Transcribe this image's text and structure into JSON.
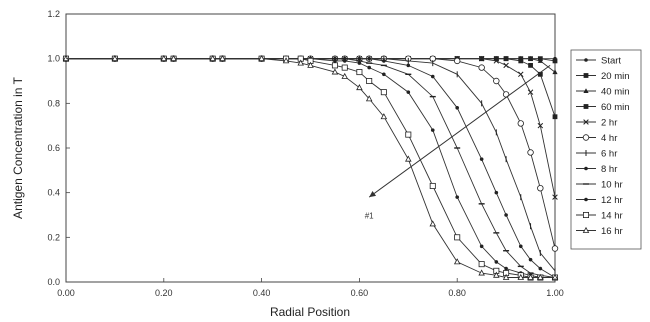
{
  "chart_data": {
    "type": "line",
    "title": "",
    "xlabel": "Radial Position",
    "ylabel": "Antigen Concentration in T",
    "xlim": [
      0,
      1
    ],
    "ylim": [
      0,
      1.2
    ],
    "x_ticks": [
      "0.00",
      "0.20",
      "0.40",
      "0.60",
      "0.80",
      "1.00"
    ],
    "y_ticks": [
      "0.0",
      "0.2",
      "0.4",
      "0.6",
      "0.8",
      "1.0",
      "1.2"
    ],
    "grid": false,
    "legend_position": "right",
    "x": [
      0,
      0.1,
      0.2,
      0.22,
      0.3,
      0.32,
      0.4,
      0.45,
      0.48,
      0.5,
      0.55,
      0.57,
      0.6,
      0.62,
      0.65,
      0.7,
      0.75,
      0.8,
      0.85,
      0.88,
      0.9,
      0.93,
      0.95,
      0.97,
      1.0
    ],
    "series": [
      {
        "name": "Start",
        "marker": "dot",
        "values": [
          1,
          1,
          1,
          1,
          1,
          1,
          1,
          1,
          1,
          1,
          1,
          1,
          1,
          1,
          1,
          1,
          1,
          1,
          1,
          1,
          1,
          1,
          1,
          1,
          1
        ]
      },
      {
        "name": "20 min",
        "marker": "square-fill",
        "values": [
          1,
          1,
          1,
          1,
          1,
          1,
          1,
          1,
          1,
          1,
          1,
          1,
          1,
          1,
          1,
          1,
          1,
          1,
          1,
          1,
          1,
          1,
          1,
          1,
          0.99
        ]
      },
      {
        "name": "40 min",
        "marker": "tri-fill",
        "values": [
          1,
          1,
          1,
          1,
          1,
          1,
          1,
          1,
          1,
          1,
          1,
          1,
          1,
          1,
          1,
          1,
          1,
          1,
          1,
          1,
          1,
          1,
          1,
          0.99,
          0.94
        ]
      },
      {
        "name": "60 min",
        "marker": "square-fill",
        "values": [
          1,
          1,
          1,
          1,
          1,
          1,
          1,
          1,
          1,
          1,
          1,
          1,
          1,
          1,
          1,
          1,
          1,
          1,
          1,
          1,
          1,
          0.99,
          0.97,
          0.93,
          0.74
        ]
      },
      {
        "name": "2 hr",
        "marker": "x",
        "values": [
          1,
          1,
          1,
          1,
          1,
          1,
          1,
          1,
          1,
          1,
          1,
          1,
          1,
          1,
          1,
          1,
          1,
          1,
          1,
          0.99,
          0.97,
          0.93,
          0.85,
          0.7,
          0.38
        ]
      },
      {
        "name": "4 hr",
        "marker": "circle-open",
        "values": [
          1,
          1,
          1,
          1,
          1,
          1,
          1,
          1,
          1,
          1,
          1,
          1,
          1,
          1,
          1,
          1,
          1,
          0.99,
          0.96,
          0.9,
          0.84,
          0.71,
          0.58,
          0.42,
          0.15
        ]
      },
      {
        "name": "6 hr",
        "marker": "bar",
        "values": [
          1,
          1,
          1,
          1,
          1,
          1,
          1,
          1,
          1,
          1,
          1,
          1,
          1,
          1,
          1,
          0.99,
          0.98,
          0.93,
          0.8,
          0.67,
          0.55,
          0.38,
          0.25,
          0.13,
          0.05
        ]
      },
      {
        "name": "8 hr",
        "marker": "dot",
        "values": [
          1,
          1,
          1,
          1,
          1,
          1,
          1,
          1,
          1,
          1,
          1,
          1,
          1,
          1,
          0.99,
          0.97,
          0.92,
          0.78,
          0.55,
          0.4,
          0.3,
          0.16,
          0.1,
          0.06,
          0.02
        ]
      },
      {
        "name": "10 hr",
        "marker": "dash",
        "values": [
          1,
          1,
          1,
          1,
          1,
          1,
          1,
          1,
          1,
          1,
          1,
          1,
          0.99,
          0.98,
          0.97,
          0.93,
          0.83,
          0.6,
          0.35,
          0.22,
          0.14,
          0.07,
          0.04,
          0.03,
          0.02
        ]
      },
      {
        "name": "12 hr",
        "marker": "dot",
        "values": [
          1,
          1,
          1,
          1,
          1,
          1,
          1,
          1,
          1,
          1,
          0.99,
          0.99,
          0.98,
          0.96,
          0.93,
          0.85,
          0.68,
          0.38,
          0.16,
          0.09,
          0.06,
          0.04,
          0.03,
          0.02,
          0.02
        ]
      },
      {
        "name": "14 hr",
        "marker": "square-open",
        "values": [
          1,
          1,
          1,
          1,
          1,
          1,
          1,
          1,
          1,
          0.99,
          0.97,
          0.96,
          0.94,
          0.9,
          0.85,
          0.66,
          0.43,
          0.2,
          0.08,
          0.05,
          0.04,
          0.03,
          0.02,
          0.02,
          0.02
        ]
      },
      {
        "name": "16 hr",
        "marker": "tri-open",
        "values": [
          1,
          1,
          1,
          1,
          1,
          1,
          1,
          0.99,
          0.98,
          0.97,
          0.94,
          0.92,
          0.87,
          0.82,
          0.74,
          0.55,
          0.26,
          0.09,
          0.04,
          0.03,
          0.02,
          0.02,
          0.02,
          0.02,
          0.02
        ]
      }
    ],
    "annotations": [
      {
        "text": "#1",
        "x": 0.62,
        "y": 0.33
      },
      {
        "text": "",
        "arrow_from": [
          0.62,
          0.38
        ],
        "arrow_to": [
          0.99,
          0.97
        ]
      }
    ]
  }
}
